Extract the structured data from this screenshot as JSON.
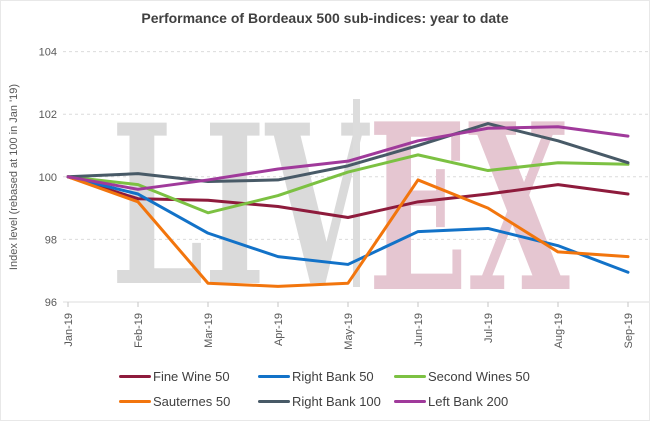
{
  "title": "Performance of Bordeaux 500 sub-indices: year to date",
  "watermark": {
    "left": "LIV",
    "right": "EX"
  },
  "chart_data": {
    "type": "line",
    "title": "Performance of Bordeaux 500 sub-indices: year to date",
    "xlabel": "",
    "ylabel": "Index level (rebased at 100 in Jan '19)",
    "ylim": [
      96,
      104
    ],
    "y_ticks": [
      96,
      98,
      100,
      102,
      104
    ],
    "grid": "horizontal-dashed",
    "legend_position": "bottom",
    "x": [
      "Jan-19",
      "Feb-19",
      "Mar-19",
      "Apr-19",
      "May-19",
      "Jun-19",
      "Jul-19",
      "Aug-19",
      "Sep-19"
    ],
    "series": [
      {
        "name": "Fine Wine 50",
        "color": "#8E1B3C",
        "values": [
          100,
          99.3,
          99.25,
          99.05,
          98.7,
          99.2,
          99.45,
          99.75,
          99.45
        ]
      },
      {
        "name": "Right Bank 50",
        "color": "#1272C8",
        "values": [
          100,
          99.45,
          98.2,
          97.45,
          97.2,
          98.25,
          98.35,
          97.8,
          96.95
        ]
      },
      {
        "name": "Second Wines 50",
        "color": "#7CC142",
        "values": [
          100,
          99.75,
          98.85,
          99.4,
          100.15,
          100.7,
          100.2,
          100.45,
          100.4
        ]
      },
      {
        "name": "Sauternes 50",
        "color": "#F2750D",
        "values": [
          100,
          99.2,
          96.6,
          96.5,
          96.6,
          99.9,
          99.0,
          97.6,
          97.45
        ]
      },
      {
        "name": "Right Bank 100",
        "color": "#485A67",
        "values": [
          100,
          100.1,
          99.85,
          99.9,
          100.35,
          101.0,
          101.7,
          101.15,
          100.45
        ]
      },
      {
        "name": "Left Bank 200",
        "color": "#A03A9B",
        "values": [
          100,
          99.6,
          99.9,
          100.25,
          100.5,
          101.15,
          101.55,
          101.6,
          101.3
        ]
      }
    ]
  }
}
